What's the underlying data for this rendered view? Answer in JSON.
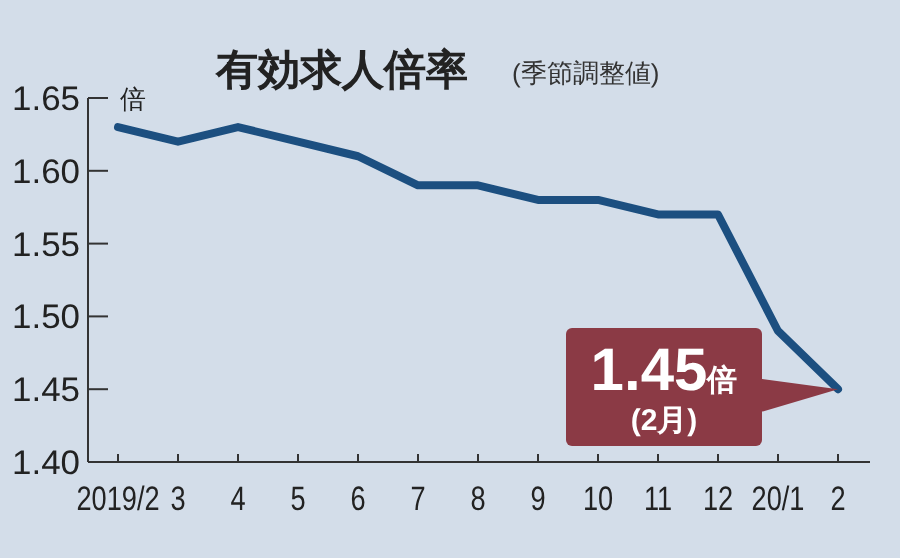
{
  "chart_data": {
    "type": "line",
    "title": "有効求人倍率",
    "subtitle": "(季節調整値)",
    "ylabel": "倍",
    "categories": [
      "2019/2",
      "3",
      "4",
      "5",
      "6",
      "7",
      "8",
      "9",
      "10",
      "11",
      "12",
      "20/1",
      "2"
    ],
    "series": [
      {
        "color": "#1c4f80",
        "values": [
          1.63,
          1.62,
          1.63,
          1.62,
          1.61,
          1.59,
          1.59,
          1.58,
          1.58,
          1.57,
          1.57,
          1.49,
          1.45
        ]
      }
    ],
    "ylim": [
      1.4,
      1.65
    ],
    "yticks": [
      {
        "value": 1.4,
        "label": "1.40"
      },
      {
        "value": 1.45,
        "label": "1.45"
      },
      {
        "value": 1.5,
        "label": "1.50"
      },
      {
        "value": 1.55,
        "label": "1.55"
      },
      {
        "value": 1.6,
        "label": "1.60"
      },
      {
        "value": 1.65,
        "label": "1.65"
      }
    ],
    "grid": false,
    "marker": "none",
    "line_style": "solid",
    "annotations": [
      {
        "text": "1.45倍\n(2月)",
        "x": "2",
        "y": 1.45
      }
    ]
  }
}
